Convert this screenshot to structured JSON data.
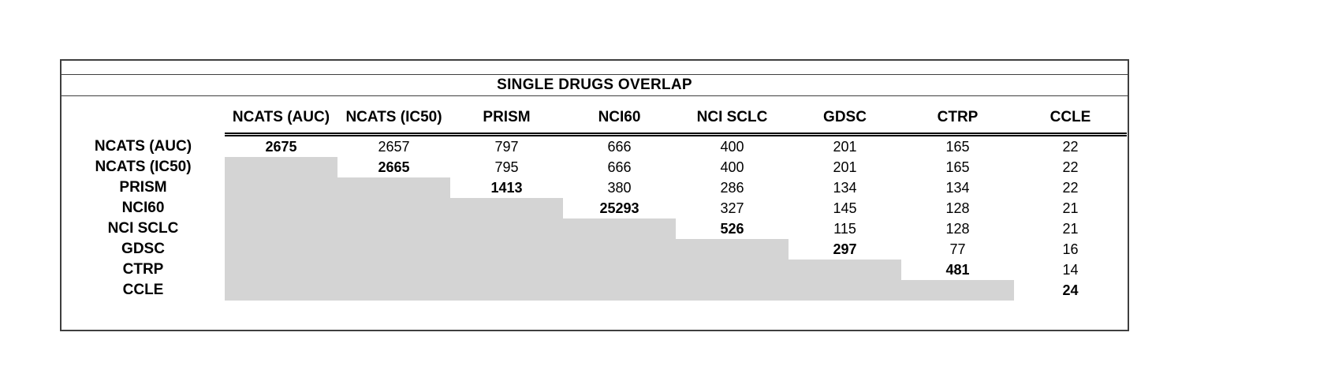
{
  "chart_data": {
    "type": "table",
    "title": "SINGLE DRUGS OVERLAP",
    "columns": [
      "NCATS (AUC)",
      "NCATS (IC50)",
      "PRISM",
      "NCI60",
      "NCI SCLC",
      "GDSC",
      "CTRP",
      "CCLE"
    ],
    "row_labels": [
      "NCATS (AUC)",
      "NCATS (IC50)",
      "PRISM",
      "NCI60",
      "NCI SCLC",
      "GDSC",
      "CTRP",
      "CCLE"
    ],
    "matrix": [
      [
        2675,
        2657,
        797,
        666,
        400,
        201,
        165,
        22
      ],
      [
        null,
        2665,
        795,
        666,
        400,
        201,
        165,
        22
      ],
      [
        null,
        null,
        1413,
        380,
        286,
        134,
        134,
        22
      ],
      [
        null,
        null,
        null,
        25293,
        327,
        145,
        128,
        21
      ],
      [
        null,
        null,
        null,
        null,
        526,
        115,
        128,
        21
      ],
      [
        null,
        null,
        null,
        null,
        null,
        297,
        77,
        16
      ],
      [
        null,
        null,
        null,
        null,
        null,
        null,
        481,
        14
      ],
      [
        null,
        null,
        null,
        null,
        null,
        null,
        null,
        24
      ]
    ],
    "diagonal_bold": true,
    "lower_triangle_shaded": true,
    "grid": false,
    "legend_position": "none"
  },
  "colors": {
    "background": "#ffffff",
    "border": "#3f3f3f",
    "text": "#000000",
    "shade": "#d4d4d4"
  }
}
